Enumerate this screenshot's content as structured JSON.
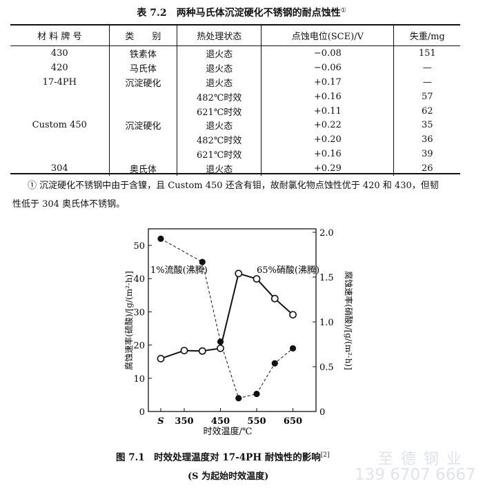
{
  "table": {
    "title": "表 7.2　两种马氏体沉淀硬化不锈钢的耐点蚀性",
    "title_note": "①",
    "headers": [
      "材 料 牌 号",
      "类　　别",
      "热处理状态",
      "点蚀电位(SCE)/V",
      "失重/mg"
    ],
    "rows": [
      [
        "430",
        "铁素体",
        "退火态",
        "−0.08",
        "151"
      ],
      [
        "420",
        "马氏体",
        "退火态",
        "−0.06",
        "—"
      ],
      [
        "17-4PH",
        "沉淀硬化",
        "退火态",
        "+0.17",
        "—"
      ],
      [
        "",
        "",
        "482℃时效",
        "+0.16",
        "57"
      ],
      [
        "",
        "",
        "621℃时效",
        "+0.11",
        "62"
      ],
      [
        "Custom 450",
        "沉淀硬化",
        "退火态",
        "+0.22",
        "35"
      ],
      [
        "",
        "",
        "482℃时效",
        "+0.20",
        "36"
      ],
      [
        "",
        "",
        "621℃时效",
        "+0.16",
        "39"
      ],
      [
        "304",
        "奥氏体",
        "退火态",
        "+0.29",
        "26"
      ]
    ],
    "footnote_line1": "① 沉淀硬化不锈钢中由于含镍，且 Custom 450 还含有钼，故耐氯化物点蚀性优于 420 和 430，但韧",
    "footnote_line2": "性低于 304 奥氏体不锈钢。"
  },
  "chart_data": {
    "type": "line",
    "xlabel": "时效温度/℃",
    "ylabel": "腐蚀速率(硫酸)/[g/(m²·h)]",
    "y2label": "腐蚀速率(硝酸)/[g/(m²·h)]",
    "x_ticks": [
      "S",
      "350",
      "450",
      "550",
      "650"
    ],
    "y_ticks": [
      "0",
      "10",
      "20",
      "30",
      "40",
      "50"
    ],
    "y2_ticks": [
      "0",
      "0.5",
      "1.0",
      "1.5",
      "2.0"
    ],
    "ylim": [
      0,
      54
    ],
    "y2lim": [
      0,
      2.0
    ],
    "grid": false,
    "series": [
      {
        "name": "1%流酸(沸腾)",
        "axis": "left",
        "style": "dashed",
        "marker": "filled-circle",
        "x": [
          "S",
          400,
          450,
          500,
          550,
          600,
          650
        ],
        "y": [
          52,
          45,
          21,
          4,
          5.3,
          14.5,
          19
        ]
      },
      {
        "name": "65%硝酸(沸腾)",
        "axis": "right",
        "style": "solid",
        "marker": "open-circle",
        "x": [
          "S",
          350,
          400,
          450,
          500,
          550,
          600,
          650
        ],
        "y": [
          0.59,
          0.68,
          0.675,
          0.705,
          1.54,
          1.48,
          1.26,
          1.08
        ]
      }
    ]
  },
  "figure": {
    "caption": "图 7.1　时效处理温度对 17-4PH 耐蚀性的影响",
    "caption_ref": "[2]",
    "subcaption": "(S 为起始时效温度)"
  },
  "watermark": {
    "company": "至 德 钢 业",
    "phone": "139 6707 6667"
  }
}
